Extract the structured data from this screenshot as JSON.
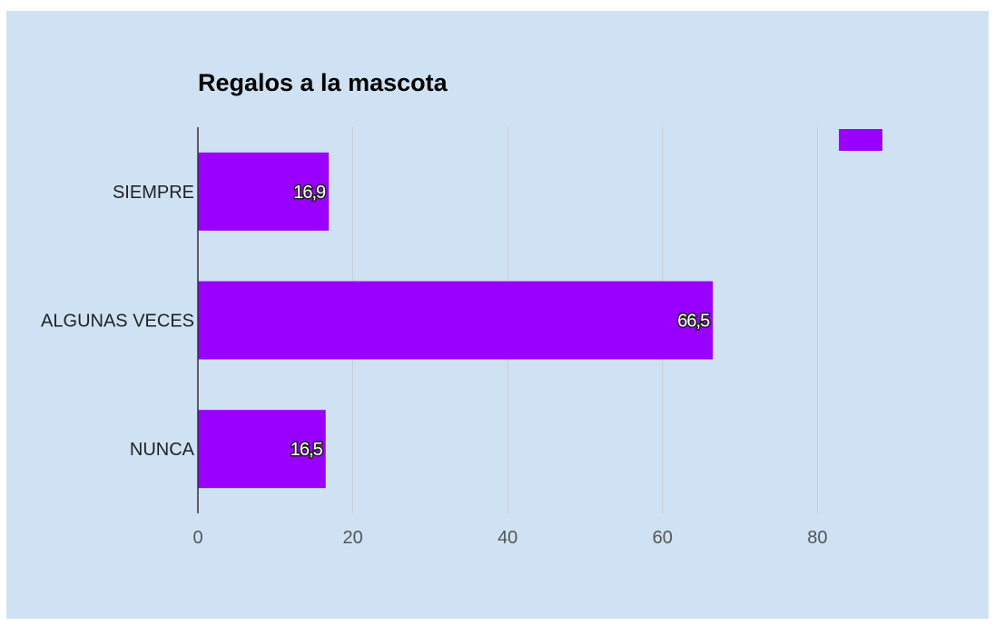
{
  "colors": {
    "background": "#cfe2f3",
    "bar": "#9900ff",
    "gridline": "#cccccc",
    "axis": "#333333"
  },
  "chart_data": {
    "type": "bar",
    "orientation": "horizontal",
    "title": "Regalos a la mascota",
    "xlabel": "",
    "ylabel": "",
    "categories": [
      "SIEMPRE",
      "ALGUNAS VECES",
      "NUNCA"
    ],
    "values": [
      16.9,
      66.5,
      16.5
    ],
    "data_labels": [
      "16,9",
      "66,5",
      "16,5"
    ],
    "xlim": [
      0,
      100
    ],
    "x_ticks": [
      0,
      20,
      40,
      60,
      80
    ],
    "x_tick_labels": [
      "0",
      "20",
      "40",
      "60",
      "80"
    ],
    "grid": true,
    "legend": {
      "position": "top-right",
      "entries": [
        ""
      ]
    }
  }
}
